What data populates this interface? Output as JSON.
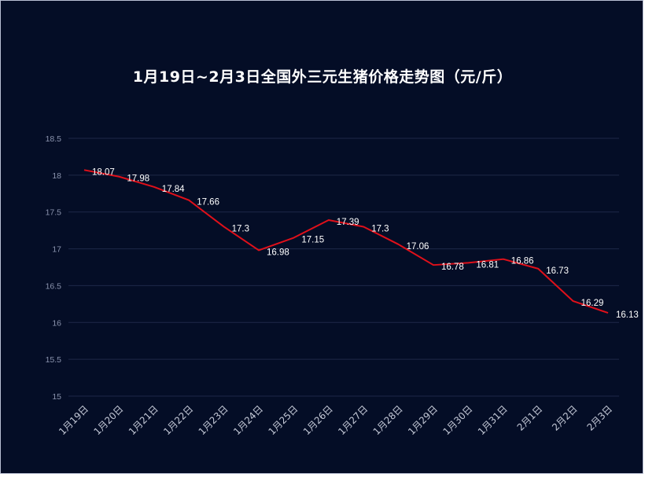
{
  "chart_data": {
    "type": "line",
    "title": "1月19日~2月3日全国外三元生猪价格走势图（元/斤）",
    "categories": [
      "1月19日",
      "1月20日",
      "1月21日",
      "1月22日",
      "1月23日",
      "1月24日",
      "1月25日",
      "1月26日",
      "1月27日",
      "1月28日",
      "1月29日",
      "1月30日",
      "1月31日",
      "2月1日",
      "2月2日",
      "2月3日"
    ],
    "series": [
      {
        "values": [
          18.07,
          17.98,
          17.84,
          17.66,
          17.3,
          16.98,
          17.15,
          17.39,
          17.3,
          17.06,
          16.78,
          16.81,
          16.86,
          16.73,
          16.29,
          16.13
        ]
      }
    ],
    "data_labels": [
      "18.07",
      "17.98",
      "17.84",
      "17.66",
      "17.3",
      "16.98",
      "17.15",
      "17.39",
      "17.3",
      "17.06",
      "16.78",
      "16.81",
      "16.86",
      "16.73",
      "16.29",
      "16.13"
    ],
    "yticks": [
      "15",
      "15.5",
      "16",
      "16.5",
      "17",
      "17.5",
      "18",
      "18.5"
    ],
    "ylim": [
      15,
      18.5
    ],
    "grid": true,
    "legend": "none",
    "colors": {
      "background": "#040d26",
      "line": "#e0101a",
      "grid": "#1e2848",
      "text": "#ffffff"
    }
  }
}
